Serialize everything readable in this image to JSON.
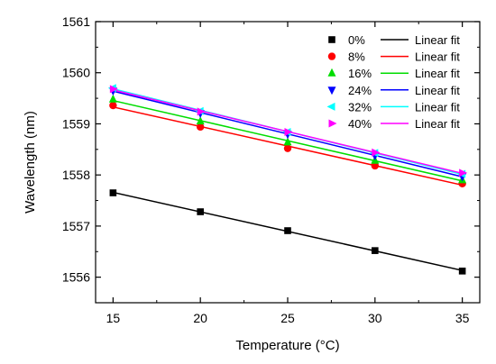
{
  "chart_data": {
    "type": "scatter",
    "xlabel": "Temperature (°C)",
    "ylabel": "Wavelength (nm)",
    "xlim": [
      14,
      36
    ],
    "ylim": [
      1555.5,
      1561
    ],
    "xticks": [
      "15",
      "20",
      "25",
      "30",
      "35"
    ],
    "yticks": [
      "1556",
      "1557",
      "1558",
      "1559",
      "1560",
      "1561"
    ],
    "x": [
      15,
      20,
      25,
      30,
      35
    ],
    "grid": false,
    "legend_position": "top-right",
    "series": [
      {
        "name": "0%",
        "fit_name": "Linear fit",
        "marker": "square",
        "color": "#000000",
        "values": [
          1557.65,
          1557.28,
          1556.91,
          1556.52,
          1556.12
        ]
      },
      {
        "name": "8%",
        "fit_name": "Linear fit",
        "marker": "circle",
        "color": "#ff0000",
        "values": [
          1559.36,
          1558.94,
          1558.52,
          1558.18,
          1557.83
        ]
      },
      {
        "name": "16%",
        "fit_name": "Linear fit",
        "marker": "triangle-up",
        "color": "#00dd00",
        "values": [
          1559.48,
          1559.05,
          1558.64,
          1558.28,
          1557.9
        ]
      },
      {
        "name": "24%",
        "fit_name": "Linear fit",
        "marker": "triangle-down",
        "color": "#0000ff",
        "values": [
          1559.65,
          1559.21,
          1558.8,
          1558.38,
          1557.97
        ]
      },
      {
        "name": "32%",
        "fit_name": "Linear fit",
        "marker": "triangle-left",
        "color": "#00ffff",
        "values": [
          1559.7,
          1559.25,
          1558.84,
          1558.43,
          1558.02
        ]
      },
      {
        "name": "40%",
        "fit_name": "Linear fit",
        "marker": "triangle-right",
        "color": "#ff00ff",
        "values": [
          1559.68,
          1559.24,
          1558.84,
          1558.44,
          1558.04
        ]
      }
    ]
  }
}
